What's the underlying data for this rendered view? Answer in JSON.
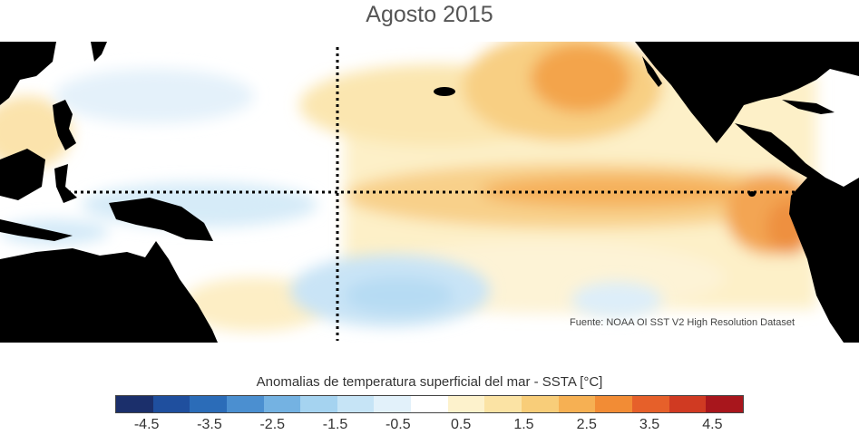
{
  "title": "Agosto 2015",
  "source_note": "Fuente: NOAA OI SST V2 High Resolution Dataset",
  "colorbar": {
    "title": "Anomalias de temperatura superficial del mar - SSTA  [°C]",
    "min": -5,
    "max": 5,
    "bin_colors": [
      "#1b2f6b",
      "#1f4f9e",
      "#2b6cb8",
      "#4b8fd0",
      "#74b2e2",
      "#a5d3f0",
      "#c6e4f6",
      "#e2f1fa",
      "#ffffff",
      "#fdf2cc",
      "#fbe3a4",
      "#f8cd79",
      "#f6b053",
      "#f28c35",
      "#e6602a",
      "#d03a22",
      "#a8161c"
    ],
    "tick_labels": [
      "-4.5",
      "-3.5",
      "-2.5",
      "-1.5",
      "-0.5",
      "0.5",
      "1.5",
      "2.5",
      "3.5",
      "4.5"
    ],
    "tick_values": [
      -4.5,
      -3.5,
      -2.5,
      -1.5,
      -0.5,
      0.5,
      1.5,
      2.5,
      3.5,
      4.5
    ]
  },
  "map": {
    "land_color": "#000000",
    "ocean_neutral": "#ffffff",
    "reference_lines": "equator and 180° meridian, dotted"
  }
}
